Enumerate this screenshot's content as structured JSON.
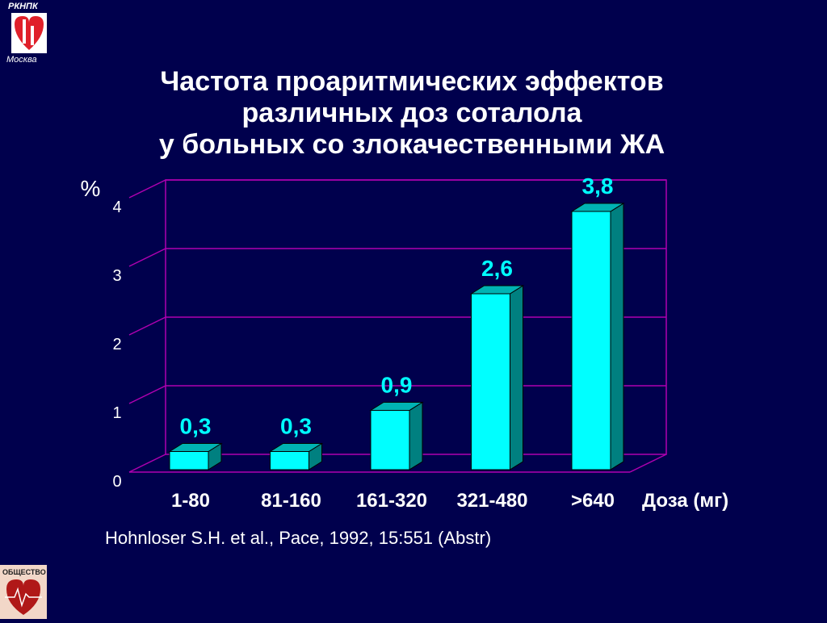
{
  "header": {
    "org": "РКНПК",
    "city": "Москва",
    "title_lines": [
      "Частота проаритмических эффектов",
      "различных доз соталола",
      "у больных со злокачественными ЖА"
    ]
  },
  "citation": "Hohnloser S.H. et al., Pace, 1992, 15:551 (Abstr)",
  "footer_logo": {
    "label": "ОБЩЕСТВО"
  },
  "chart_data": {
    "type": "bar",
    "categories": [
      "1-80",
      "81-160",
      "161-320",
      "321-480",
      ">640"
    ],
    "values": [
      0.3,
      0.3,
      0.9,
      2.6,
      3.8
    ],
    "value_labels": [
      "0,3",
      "0,3",
      "0,9",
      "2,6",
      "3,8"
    ],
    "ylabel": "%",
    "xlabel": "Доза (мг)",
    "ylim": [
      0,
      4
    ],
    "yticks": [
      0,
      1,
      2,
      3,
      4
    ],
    "grid": true,
    "colors": {
      "bar_front": "#00ffff",
      "bar_side": "#008080",
      "bar_top": "#00b3b3",
      "grid": "#b000b0",
      "value_label": "#00ffff",
      "text": "#ffffff"
    }
  }
}
